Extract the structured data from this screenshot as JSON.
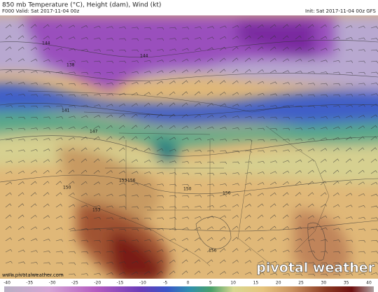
{
  "header": {
    "title": "850 mb Temperature (°C), Height (dam), Wind (kt)",
    "valid": "F000 Valid: Sat 2017-11-04 00z",
    "init": "Init: Sat 2017-11-04 00z GFS"
  },
  "map": {
    "contour_labels": [
      "144",
      "138",
      "141",
      "144",
      "147",
      "150",
      "153",
      "156",
      "156",
      "150",
      "153",
      "156"
    ]
  },
  "footer": {
    "url": "www.pivotalweather.com",
    "brand": "pivotal weather"
  },
  "colorbar": {
    "ticks": [
      -40,
      -35,
      -30,
      -25,
      -20,
      -15,
      -10,
      -5,
      0,
      5,
      10,
      15,
      20,
      25,
      30,
      35,
      40
    ]
  }
}
